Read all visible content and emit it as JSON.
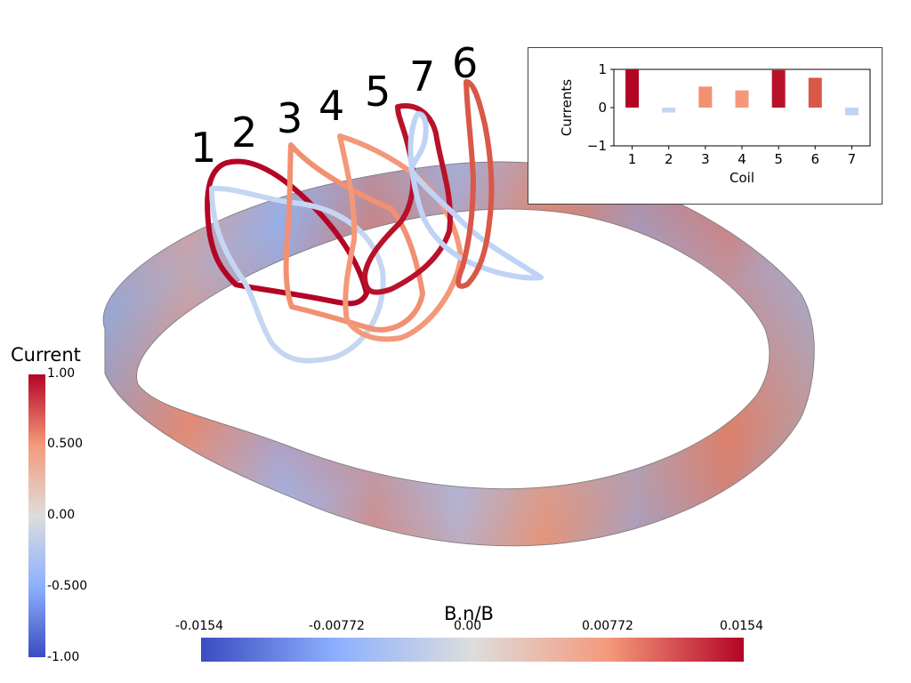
{
  "coil_labels": [
    "1",
    "2",
    "3",
    "4",
    "5",
    "7",
    "6"
  ],
  "current_colorbar": {
    "title": "Current",
    "ticks": [
      "1.00",
      "0.500",
      "0.00",
      "-0.500",
      "-1.00"
    ]
  },
  "bn_colorbar": {
    "title": "B.n/B",
    "ticks": [
      "-0.0154",
      "-0.00772",
      "0.00",
      "0.00772",
      "0.0154"
    ]
  },
  "colors": {
    "coil_1": "#b40426",
    "coil_2": "#c5d6f2",
    "coil_3": "#f29072",
    "coil_4": "#f4987a",
    "coil_5": "#b8122a",
    "coil_6": "#d95847",
    "coil_7": "#bfd3f6",
    "colormap": [
      "#3b4cc0",
      "#8db0fe",
      "#dddddd",
      "#f49a7b",
      "#b40426"
    ]
  },
  "chart_data": {
    "type": "bar",
    "categories": [
      "1",
      "2",
      "3",
      "4",
      "5",
      "6",
      "7"
    ],
    "values": [
      1.0,
      -0.13,
      0.55,
      0.45,
      0.98,
      0.78,
      -0.2
    ],
    "colors": [
      "#b40426",
      "#c5d6f2",
      "#f29072",
      "#f4987a",
      "#b8122a",
      "#d95847",
      "#bfd3f6"
    ],
    "xlabel": "Coil",
    "ylabel": "Currents",
    "ylim": [
      -1,
      1
    ],
    "yticks": [
      "1",
      "0",
      "−1"
    ],
    "grid": false
  }
}
